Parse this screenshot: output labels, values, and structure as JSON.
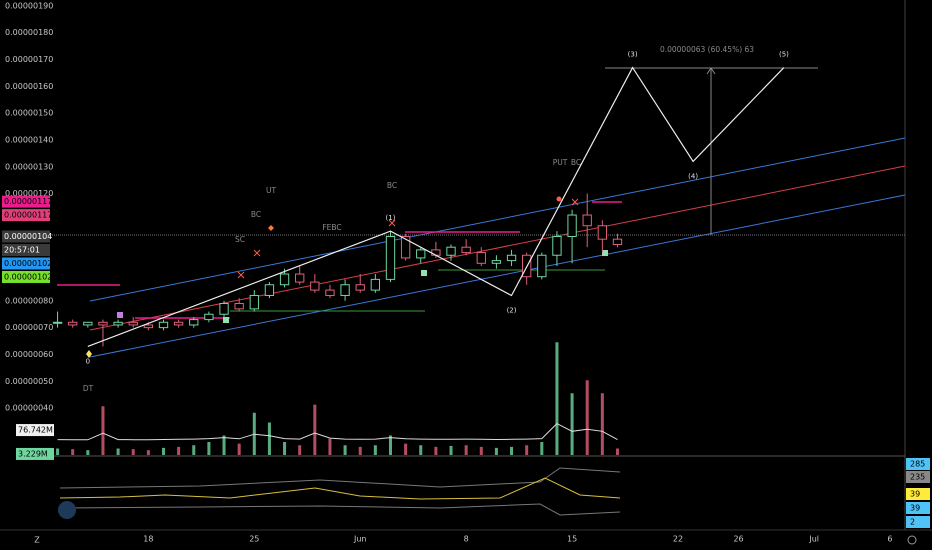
{
  "chart_data": {
    "type": "candlestick",
    "ylim": [
      2.25e-07,
      1.922e-06
    ],
    "xlim": [
      -0.5,
      56
    ],
    "yticks": [
      {
        "value": 1.9e-06,
        "label": "0.00000190"
      },
      {
        "value": 1.8e-06,
        "label": "0.00000180"
      },
      {
        "value": 1.7e-06,
        "label": "0.00000170"
      },
      {
        "value": 1.6e-06,
        "label": "0.00000160"
      },
      {
        "value": 1.5e-06,
        "label": "0.00000150"
      },
      {
        "value": 1.4e-06,
        "label": "0.00000140"
      },
      {
        "value": 1.3e-06,
        "label": "0.00000130"
      },
      {
        "value": 1.2e-06,
        "label": "0.00000120"
      },
      {
        "value": 8e-07,
        "label": "0.00000080"
      },
      {
        "value": 7e-07,
        "label": "0.00000070"
      },
      {
        "value": 6e-07,
        "label": "0.00000060"
      },
      {
        "value": 5e-07,
        "label": "0.00000050"
      },
      {
        "value": 4e-07,
        "label": "0.00000040"
      }
    ],
    "xticks": [
      {
        "value": 6,
        "label": "18"
      },
      {
        "value": 13,
        "label": "25"
      },
      {
        "value": 20,
        "label": "Jun"
      },
      {
        "value": 27,
        "label": "8"
      },
      {
        "value": 34,
        "label": "15"
      },
      {
        "value": 41,
        "label": "22"
      },
      {
        "value": 45,
        "label": "26"
      },
      {
        "value": 50,
        "label": "Jul"
      },
      {
        "value": 55,
        "label": "6"
      }
    ],
    "up_color": "#6fd6a0",
    "down_color": "#e0607a",
    "candles": [
      [
        7.2e-07,
        7.6e-07,
        7e-07,
        7.2e-07
      ],
      [
        7.2e-07,
        7.3e-07,
        7e-07,
        7.1e-07
      ],
      [
        7.1e-07,
        7.2e-07,
        7e-07,
        7.2e-07
      ],
      [
        7.2e-07,
        7.3e-07,
        6.3e-07,
        7.1e-07
      ],
      [
        7.1e-07,
        7.3e-07,
        7e-07,
        7.2e-07
      ],
      [
        7.2e-07,
        7.4e-07,
        7e-07,
        7.1e-07
      ],
      [
        7.1e-07,
        7.2e-07,
        6.9e-07,
        7e-07
      ],
      [
        7e-07,
        7.3e-07,
        6.9e-07,
        7.2e-07
      ],
      [
        7.2e-07,
        7.3e-07,
        7e-07,
        7.1e-07
      ],
      [
        7.1e-07,
        7.4e-07,
        7e-07,
        7.3e-07
      ],
      [
        7.3e-07,
        7.6e-07,
        7.2e-07,
        7.5e-07
      ],
      [
        7.5e-07,
        8e-07,
        7.4e-07,
        7.9e-07
      ],
      [
        7.9e-07,
        8.1e-07,
        7.6e-07,
        7.7e-07
      ],
      [
        7.7e-07,
        8.4e-07,
        7.6e-07,
        8.2e-07
      ],
      [
        8.2e-07,
        8.7e-07,
        8.1e-07,
        8.6e-07
      ],
      [
        8.6e-07,
        9.2e-07,
        8.5e-07,
        9e-07
      ],
      [
        9e-07,
        9.3e-07,
        8.6e-07,
        8.7e-07
      ],
      [
        8.7e-07,
        9e-07,
        8.3e-07,
        8.4e-07
      ],
      [
        8.4e-07,
        8.6e-07,
        8.1e-07,
        8.2e-07
      ],
      [
        8.2e-07,
        8.8e-07,
        8e-07,
        8.6e-07
      ],
      [
        8.6e-07,
        9e-07,
        8.3e-07,
        8.4e-07
      ],
      [
        8.4e-07,
        9e-07,
        8.3e-07,
        8.8e-07
      ],
      [
        8.8e-07,
        1.06e-06,
        8.7e-07,
        1.04e-06
      ],
      [
        1.04e-06,
        1.05e-06,
        9.5e-07,
        9.6e-07
      ],
      [
        9.6e-07,
        1e-06,
        9.4e-07,
        9.9e-07
      ],
      [
        9.9e-07,
        1.02e-06,
        9.6e-07,
        9.7e-07
      ],
      [
        9.7e-07,
        1.01e-06,
        9.5e-07,
        1e-06
      ],
      [
        1e-06,
        1.03e-06,
        9.7e-07,
        9.8e-07
      ],
      [
        9.8e-07,
        1e-06,
        9.3e-07,
        9.4e-07
      ],
      [
        9.4e-07,
        9.7e-07,
        9.2e-07,
        9.5e-07
      ],
      [
        9.5e-07,
        9.9e-07,
        9.3e-07,
        9.7e-07
      ],
      [
        9.7e-07,
        9.8e-07,
        8.6e-07,
        8.9e-07
      ],
      [
        8.9e-07,
        9.8e-07,
        8.8e-07,
        9.7e-07
      ],
      [
        9.7e-07,
        1.06e-06,
        9.3e-07,
        1.04e-06
      ],
      [
        1.04e-06,
        1.14e-06,
        9.4e-07,
        1.12e-06
      ],
      [
        1.12e-06,
        1.2e-06,
        1e-06,
        1.08e-06
      ],
      [
        1.08e-06,
        1.1e-06,
        9.8e-07,
        1.03e-06
      ],
      [
        1.03e-06,
        1.05e-06,
        1e-06,
        1.01e-06
      ]
    ],
    "volume_ylim": [
      0,
      1400
    ],
    "volume": [
      20,
      18,
      15,
      150,
      20,
      18,
      15,
      22,
      25,
      30,
      40,
      60,
      35,
      130,
      100,
      40,
      30,
      155,
      50,
      30,
      25,
      30,
      60,
      35,
      30,
      25,
      28,
      30,
      25,
      22,
      25,
      30,
      40,
      347,
      190,
      230,
      190,
      20
    ],
    "volume_badges": [
      {
        "value": 76.742,
        "label": "76.742M"
      },
      {
        "value": 3.229,
        "label": "3.229M"
      }
    ],
    "price_badges": [
      {
        "value": 1.17e-06,
        "label": "0.00000117",
        "color": "#e91e8c"
      },
      {
        "value": 1.17e-06,
        "label": "0.00000117",
        "color": "#e0407a"
      },
      {
        "value": 1.04e-06,
        "label": "0.00000104",
        "color": "#3a3a3a"
      },
      {
        "value": 1.02e-06,
        "label": "0.00000102",
        "color": "#2196f3"
      },
      {
        "value": 1.02e-06,
        "label": "0.00000102",
        "color": "#76e02a"
      }
    ],
    "countdown": "20:57:01",
    "wave": {
      "x": [
        2,
        22,
        30,
        38,
        42,
        48
      ],
      "values": [
        6.3e-07,
        1.06e-06,
        8.2e-07,
        1.67e-06,
        1.32e-06,
        1.67e-06
      ],
      "labels": [
        "0",
        "(1)",
        "(2)",
        "(3)",
        "(4)",
        "(5)"
      ]
    },
    "measure": "0.00000063 (60.45%) 63",
    "annotations": [
      "UT",
      "BC",
      "SC",
      "FEBC",
      "BC",
      "PUT",
      "BC",
      "DT"
    ],
    "indicator_badges": [
      "285",
      "235",
      "39",
      "39",
      "2"
    ],
    "footer": "Z"
  }
}
